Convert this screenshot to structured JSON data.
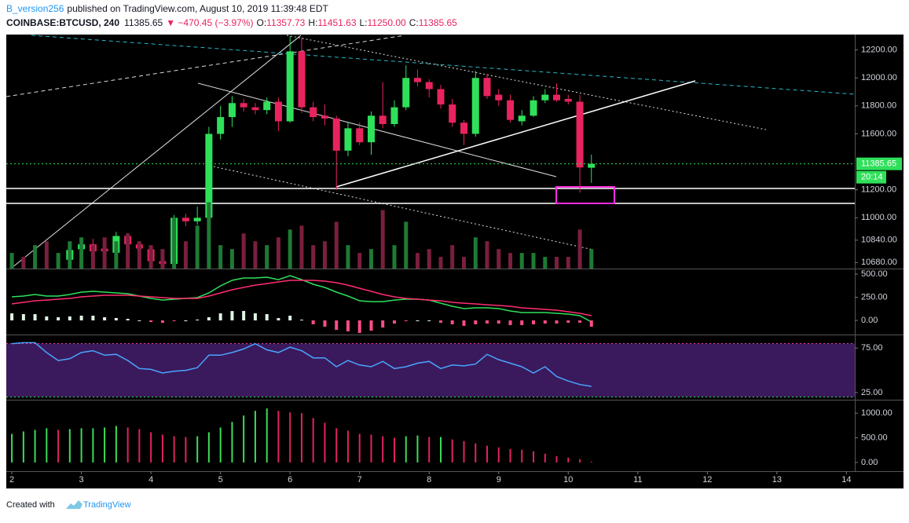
{
  "header": {
    "author": "B_version256",
    "published": "published on TradingView.com, August 10, 2019 11:39:48 EDT",
    "symbol": "COINBASE:BTCUSD, 240",
    "last": "11385.65",
    "change": "▼ −470.45 (−3.97%)",
    "open_label": "O:",
    "open": "11357.73",
    "high_label": "H:",
    "high": "11451.63",
    "low_label": "L:",
    "low": "11250.00",
    "close_label": "C:",
    "close": "11385.65"
  },
  "price_scale": {
    "last": "11385.65",
    "countdown": "20:14"
  },
  "footer": {
    "created": "Created with",
    "brand": "TradingView"
  },
  "chart_data": [
    {
      "type": "candlestick",
      "up_color": "#2fe05a",
      "down_color": "#e8245e",
      "x": [
        2.833,
        3,
        3.167,
        3.333,
        3.5,
        3.667,
        3.833,
        4,
        4.167,
        4.333,
        4.5,
        4.667,
        4.833,
        5,
        5.167,
        5.333,
        5.5,
        5.667,
        5.833,
        6,
        6.167,
        6.333,
        6.5,
        6.667,
        6.833,
        7,
        7.167,
        7.333,
        7.5,
        7.667,
        7.833,
        8,
        8.167,
        8.333,
        8.5,
        8.667,
        8.833,
        9,
        9.167,
        9.333,
        9.5,
        9.667,
        9.833,
        10,
        10.167,
        10.333
      ],
      "open": [
        10700,
        10775,
        10810,
        10780,
        10750,
        10870,
        10810,
        10775,
        10690,
        10670,
        11000,
        10975,
        11000,
        11600,
        11720,
        11820,
        11790,
        11770,
        11830,
        11690,
        12190,
        11790,
        11730,
        11710,
        11480,
        11640,
        11540,
        11730,
        11670,
        11790,
        12000,
        11970,
        11920,
        11810,
        11680,
        11600,
        12000,
        11880,
        11840,
        11690,
        11730,
        11840,
        11880,
        11850,
        11830,
        11357.73
      ],
      "high": [
        10800,
        10840,
        10850,
        10800,
        10900,
        10890,
        10830,
        10800,
        10720,
        11020,
        11030,
        11080,
        11650,
        11800,
        11870,
        11850,
        11820,
        11860,
        11860,
        12300,
        12290,
        11830,
        11810,
        11730,
        11680,
        11680,
        11760,
        11970,
        11840,
        12090,
        12060,
        11990,
        11950,
        11850,
        11700,
        12050,
        12030,
        11920,
        11880,
        11770,
        11870,
        11920,
        11960,
        11880,
        11880,
        11451.63
      ],
      "low": [
        10640,
        10740,
        10720,
        10700,
        10720,
        10780,
        10740,
        10660,
        10640,
        10650,
        10940,
        10950,
        10980,
        11560,
        11650,
        11760,
        11740,
        11740,
        11620,
        11680,
        11750,
        11690,
        11660,
        11200,
        11440,
        11520,
        11450,
        11640,
        11650,
        11770,
        11940,
        11860,
        11780,
        11650,
        11520,
        11580,
        11850,
        11800,
        11680,
        11660,
        11720,
        11820,
        11830,
        11810,
        11180,
        11250
      ],
      "close": [
        10770,
        10810,
        10760,
        10760,
        10870,
        10810,
        10780,
        10690,
        10670,
        11000,
        10975,
        11000,
        11600,
        11720,
        11820,
        11790,
        11770,
        11830,
        11690,
        12190,
        11790,
        11720,
        11710,
        11480,
        11640,
        11540,
        11730,
        11670,
        11790,
        12000,
        11970,
        11920,
        11810,
        11680,
        11600,
        12000,
        11870,
        11840,
        11700,
        11730,
        11840,
        11880,
        11840,
        11830,
        11360,
        11385.65
      ],
      "xlim": [
        1.92,
        14.12
      ],
      "xticks": [
        2,
        3,
        4,
        5,
        6,
        7,
        8,
        9,
        10,
        11,
        12,
        13,
        14
      ],
      "ylim": [
        10637,
        12310
      ],
      "yticks": [
        {
          "value": 10680,
          "label": "10680.00"
        },
        {
          "value": 10840,
          "label": "10840.00"
        },
        {
          "value": 11000,
          "label": "11000.00"
        },
        {
          "value": 11200,
          "label": "11200.00"
        },
        {
          "value": 11600,
          "label": "11600.00"
        },
        {
          "value": 11800,
          "label": "11800.00"
        },
        {
          "value": 12000,
          "label": "12000.00"
        },
        {
          "value": 12200,
          "label": "12200.00"
        }
      ]
    },
    {
      "type": "bar",
      "ylim": [
        0,
        300
      ],
      "x": [
        2,
        2.167,
        2.333,
        2.5,
        2.667,
        2.833,
        3,
        3.167,
        3.333,
        3.5,
        3.667,
        3.833,
        4,
        4.167,
        4.333,
        4.5,
        4.667,
        4.833,
        5,
        5.167,
        5.333,
        5.5,
        5.667,
        5.833,
        6,
        6.167,
        6.333,
        6.5,
        6.667,
        6.833,
        7,
        7.167,
        7.333,
        7.5,
        7.667,
        7.833,
        8,
        8.167,
        8.333,
        8.5,
        8.667,
        8.833,
        9,
        9.167,
        9.333,
        9.5,
        9.667,
        9.833,
        10,
        10.167,
        10.333
      ],
      "values": [
        20,
        15,
        30,
        35,
        20,
        35,
        40,
        30,
        40,
        35,
        45,
        35,
        30,
        25,
        65,
        35,
        55,
        85,
        30,
        25,
        45,
        35,
        30,
        40,
        50,
        55,
        30,
        35,
        60,
        30,
        20,
        25,
        75,
        30,
        60,
        20,
        25,
        15,
        30,
        15,
        40,
        35,
        25,
        20,
        20,
        20,
        15,
        15,
        15,
        50,
        25
      ],
      "colors": [
        "#1e7a34",
        "#7a1f3d",
        "#1e7a34",
        "#7a1f3d",
        "#1e7a34",
        "#1e7a34",
        "#1e7a34",
        "#7a1f3d",
        "#7a1f3d",
        "#1e7a34",
        "#7a1f3d",
        "#7a1f3d",
        "#7a1f3d",
        "#7a1f3d",
        "#1e7a34",
        "#7a1f3d",
        "#1e7a34",
        "#1e7a34",
        "#1e7a34",
        "#1e7a34",
        "#7a1f3d",
        "#7a1f3d",
        "#1e7a34",
        "#7a1f3d",
        "#1e7a34",
        "#7a1f3d",
        "#7a1f3d",
        "#7a1f3d",
        "#7a1f3d",
        "#1e7a34",
        "#7a1f3d",
        "#1e7a34",
        "#7a1f3d",
        "#1e7a34",
        "#1e7a34",
        "#7a1f3d",
        "#7a1f3d",
        "#7a1f3d",
        "#7a1f3d",
        "#7a1f3d",
        "#1e7a34",
        "#7a1f3d",
        "#7a1f3d",
        "#7a1f3d",
        "#1e7a34",
        "#1e7a34",
        "#1e7a34",
        "#7a1f3d",
        "#7a1f3d",
        "#7a1f3d",
        "#1e7a34"
      ]
    },
    {
      "type": "line",
      "ylim": [
        -144,
        551
      ],
      "yticks": [
        {
          "value": 0,
          "label": "0.00"
        },
        {
          "value": 250,
          "label": "250.00"
        },
        {
          "value": 500,
          "label": "500.00"
        }
      ],
      "x": [
        2,
        2.167,
        2.333,
        2.5,
        2.667,
        2.833,
        3,
        3.167,
        3.333,
        3.5,
        3.667,
        3.833,
        4,
        4.167,
        4.333,
        4.5,
        4.667,
        4.833,
        5,
        5.167,
        5.333,
        5.5,
        5.667,
        5.833,
        6,
        6.167,
        6.333,
        6.5,
        6.667,
        6.833,
        7,
        7.167,
        7.333,
        7.5,
        7.667,
        7.833,
        8,
        8.167,
        8.333,
        8.5,
        8.667,
        8.833,
        9,
        9.167,
        9.333,
        9.5,
        9.667,
        9.833,
        10,
        10.167,
        10.333
      ],
      "series": [
        {
          "color": "#2fe05a",
          "values": [
            254,
            263,
            280,
            263,
            263,
            280,
            305,
            314,
            305,
            297,
            288,
            263,
            237,
            220,
            229,
            237,
            246,
            297,
            373,
            432,
            458,
            458,
            466,
            440,
            483,
            440,
            390,
            356,
            305,
            263,
            212,
            203,
            203,
            220,
            229,
            229,
            220,
            186,
            153,
            127,
            136,
            136,
            127,
            102,
            85,
            85,
            85,
            76,
            68,
            51,
            -17
          ]
        },
        {
          "color": "#ff2d6f",
          "values": [
            178,
            195,
            212,
            220,
            229,
            237,
            254,
            263,
            271,
            271,
            271,
            263,
            254,
            246,
            237,
            237,
            237,
            263,
            297,
            331,
            356,
            381,
            398,
            415,
            432,
            432,
            432,
            424,
            407,
            381,
            347,
            314,
            280,
            254,
            237,
            229,
            220,
            212,
            195,
            186,
            178,
            169,
            161,
            153,
            136,
            127,
            119,
            110,
            93,
            76,
            51
          ]
        },
        {
          "type": "bar",
          "up_color": "#dff5e3",
          "down_color": "#ff4d88",
          "values": [
            76,
            68,
            68,
            43,
            34,
            43,
            51,
            51,
            34,
            26,
            17,
            0,
            -17,
            -26,
            -8,
            0,
            9,
            34,
            76,
            101,
            102,
            77,
            68,
            25,
            51,
            8,
            -42,
            -68,
            -102,
            -118,
            -135,
            -111,
            -77,
            -34,
            -8,
            0,
            0,
            -26,
            -42,
            -59,
            -42,
            -33,
            -34,
            -51,
            -51,
            -42,
            -34,
            -34,
            -25,
            -25,
            -68
          ]
        }
      ]
    },
    {
      "type": "line",
      "ylim": [
        17.9,
        89.3
      ],
      "yticks": [
        {
          "value": 25,
          "label": "25.00"
        },
        {
          "value": 75,
          "label": "75.00"
        }
      ],
      "band": [
        20,
        80
      ],
      "band_color": "#3a1a5c",
      "band_top_color": "#e040a0",
      "band_bottom_color": "#2fe05a",
      "x": [
        2,
        2.167,
        2.333,
        2.5,
        2.667,
        2.833,
        3,
        3.167,
        3.333,
        3.5,
        3.667,
        3.833,
        4,
        4.167,
        4.333,
        4.5,
        4.667,
        4.833,
        5,
        5.167,
        5.333,
        5.5,
        5.667,
        5.833,
        6,
        6.167,
        6.333,
        6.5,
        6.667,
        6.833,
        7,
        7.167,
        7.333,
        7.5,
        7.667,
        7.833,
        8,
        8.167,
        8.333,
        8.5,
        8.667,
        8.833,
        9,
        9.167,
        9.333,
        9.5,
        9.667,
        9.833,
        10,
        10.167,
        10.333
      ],
      "series": [
        {
          "color": "#4aa3ff",
          "values": [
            80,
            81,
            81,
            70,
            61,
            63,
            70,
            72,
            67,
            68,
            61,
            52,
            51,
            47,
            49,
            50,
            53,
            67,
            67,
            70,
            74,
            80,
            73,
            70,
            76,
            72,
            64,
            64,
            54,
            61,
            56,
            54,
            60,
            52,
            54,
            58,
            60,
            52,
            56,
            55,
            57,
            68,
            62,
            58,
            54,
            47,
            54,
            43,
            38,
            34,
            32
          ]
        }
      ]
    },
    {
      "type": "bar",
      "ylim": [
        -177,
        1258
      ],
      "up_color": "#3ddc55",
      "down_color": "#e0245e",
      "yticks": [
        {
          "value": 0,
          "label": "0.00"
        },
        {
          "value": 500,
          "label": "500.00"
        },
        {
          "value": 1000,
          "label": "1000.00"
        }
      ],
      "x": [
        2,
        2.167,
        2.333,
        2.5,
        2.667,
        2.833,
        3,
        3.167,
        3.333,
        3.5,
        3.667,
        3.833,
        4,
        4.167,
        4.333,
        4.5,
        4.667,
        4.833,
        5,
        5.167,
        5.333,
        5.5,
        5.667,
        5.833,
        6,
        6.167,
        6.333,
        6.5,
        6.667,
        6.833,
        7,
        7.167,
        7.333,
        7.5,
        7.667,
        7.833,
        8,
        8.167,
        8.333,
        8.5,
        8.667,
        8.833,
        9,
        9.167,
        9.333,
        9.5,
        9.667,
        9.833,
        10,
        10.167,
        10.333
      ],
      "values": [
        581,
        629,
        661,
        694,
        661,
        677,
        694,
        694,
        710,
        742,
        710,
        677,
        613,
        565,
        532,
        516,
        532,
        613,
        710,
        823,
        952,
        1048,
        1097,
        1048,
        1016,
        1000,
        903,
        806,
        694,
        645,
        581,
        565,
        532,
        500,
        532,
        548,
        516,
        516,
        468,
        435,
        387,
        339,
        306,
        274,
        258,
        226,
        177,
        129,
        97,
        65,
        16
      ]
    }
  ]
}
